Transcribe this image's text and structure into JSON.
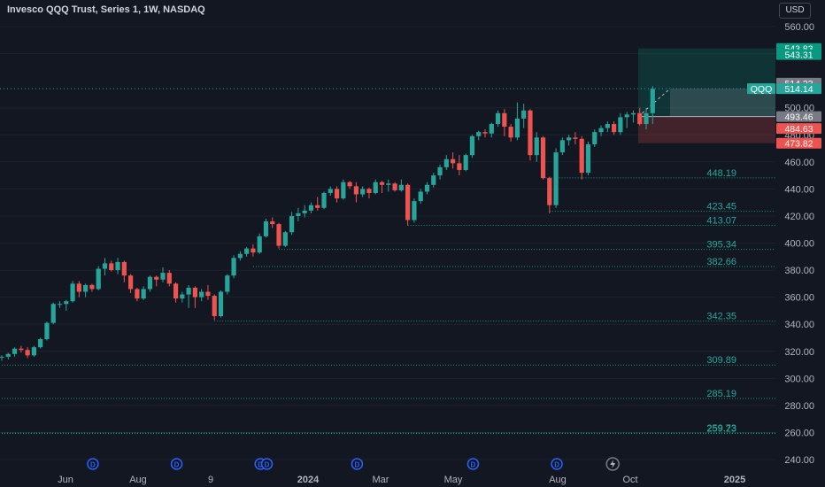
{
  "header": {
    "title": "Invesco QQQ Trust, Series 1, 1W, NASDAQ",
    "currency": "USD"
  },
  "colors": {
    "background": "#131722",
    "up": "#26a69a",
    "down": "#ef5350",
    "level_line": "#089981",
    "axis_text": "#b2b5be"
  },
  "chart_data": {
    "type": "candlestick",
    "y_axis": {
      "range": [
        232,
        566
      ],
      "ticks": [
        240,
        260,
        280,
        300,
        320,
        340,
        360,
        380,
        400,
        420,
        440,
        460,
        480,
        500,
        540,
        560
      ]
    },
    "x_axis": {
      "ticks": [
        {
          "label": "Jun",
          "bold": false
        },
        {
          "label": "Aug",
          "bold": false
        },
        {
          "label": "9",
          "bold": false
        },
        {
          "label": "2024",
          "bold": true
        },
        {
          "label": "Mar",
          "bold": false
        },
        {
          "label": "May",
          "bold": false
        },
        {
          "label": "Aug",
          "bold": false
        },
        {
          "label": "Oct",
          "bold": false
        },
        {
          "label": "2025",
          "bold": true
        }
      ]
    },
    "candles": [
      [
        316,
        317,
        313,
        316
      ],
      [
        316,
        319,
        314,
        318
      ],
      [
        318,
        323,
        316,
        322
      ],
      [
        322,
        324,
        319,
        321
      ],
      [
        321,
        323,
        315,
        317
      ],
      [
        317,
        324,
        316,
        323
      ],
      [
        323,
        330,
        322,
        329
      ],
      [
        329,
        342,
        328,
        341
      ],
      [
        341,
        356,
        340,
        355
      ],
      [
        355,
        357,
        352,
        355
      ],
      [
        355,
        358,
        350,
        357
      ],
      [
        357,
        372,
        356,
        370
      ],
      [
        370,
        372,
        360,
        364
      ],
      [
        364,
        370,
        360,
        369
      ],
      [
        369,
        370,
        364,
        366
      ],
      [
        366,
        383,
        365,
        381
      ],
      [
        381,
        389,
        376,
        385
      ],
      [
        385,
        387,
        379,
        380
      ],
      [
        380,
        389,
        377,
        386
      ],
      [
        386,
        387,
        371,
        376
      ],
      [
        376,
        377,
        363,
        366
      ],
      [
        366,
        367,
        357,
        359
      ],
      [
        359,
        368,
        358,
        366
      ],
      [
        366,
        376,
        364,
        375
      ],
      [
        375,
        376,
        368,
        373
      ],
      [
        373,
        382,
        371,
        378
      ],
      [
        378,
        380,
        368,
        370
      ],
      [
        370,
        371,
        356,
        359
      ],
      [
        359,
        364,
        356,
        362
      ],
      [
        362,
        369,
        352,
        367
      ],
      [
        367,
        368,
        352,
        360
      ],
      [
        360,
        366,
        357,
        364
      ],
      [
        364,
        369,
        358,
        361
      ],
      [
        361,
        362,
        343,
        346
      ],
      [
        346,
        365,
        345,
        364
      ],
      [
        364,
        377,
        362,
        376
      ],
      [
        376,
        391,
        374,
        389
      ],
      [
        389,
        394,
        387,
        392
      ],
      [
        392,
        397,
        390,
        396
      ],
      [
        396,
        399,
        390,
        393
      ],
      [
        393,
        407,
        392,
        405
      ],
      [
        405,
        418,
        404,
        416
      ],
      [
        416,
        419,
        411,
        414
      ],
      [
        414,
        415,
        396,
        398
      ],
      [
        398,
        409,
        397,
        408
      ],
      [
        408,
        423,
        406,
        420
      ],
      [
        420,
        426,
        416,
        422
      ],
      [
        422,
        428,
        419,
        424
      ],
      [
        424,
        430,
        422,
        428
      ],
      [
        428,
        434,
        424,
        426
      ],
      [
        426,
        438,
        425,
        437
      ],
      [
        437,
        442,
        435,
        440
      ],
      [
        440,
        442,
        430,
        433
      ],
      [
        433,
        447,
        432,
        445
      ],
      [
        445,
        446,
        440,
        442
      ],
      [
        442,
        445,
        430,
        436
      ],
      [
        436,
        442,
        434,
        440
      ],
      [
        440,
        441,
        433,
        437
      ],
      [
        437,
        447,
        436,
        445
      ],
      [
        445,
        446,
        437,
        443
      ],
      [
        443,
        447,
        438,
        444
      ],
      [
        444,
        445,
        438,
        439
      ],
      [
        439,
        447,
        438,
        443
      ],
      [
        443,
        444,
        413,
        417
      ],
      [
        417,
        433,
        415,
        431
      ],
      [
        431,
        440,
        429,
        438
      ],
      [
        438,
        445,
        436,
        443
      ],
      [
        443,
        452,
        441,
        450
      ],
      [
        450,
        458,
        447,
        456
      ],
      [
        456,
        465,
        454,
        462
      ],
      [
        462,
        467,
        455,
        459
      ],
      [
        459,
        465,
        450,
        454
      ],
      [
        454,
        466,
        453,
        465
      ],
      [
        465,
        480,
        463,
        479
      ],
      [
        479,
        483,
        476,
        482
      ],
      [
        482,
        484,
        478,
        481
      ],
      [
        481,
        489,
        478,
        488
      ],
      [
        488,
        498,
        486,
        496
      ],
      [
        496,
        499,
        479,
        486
      ],
      [
        486,
        488,
        475,
        478
      ],
      [
        478,
        504,
        476,
        492
      ],
      [
        492,
        503,
        485,
        498
      ],
      [
        498,
        499,
        461,
        465
      ],
      [
        465,
        482,
        460,
        478
      ],
      [
        478,
        479,
        447,
        448
      ],
      [
        448,
        449,
        422,
        428
      ],
      [
        428,
        470,
        426,
        467
      ],
      [
        467,
        478,
        465,
        476
      ],
      [
        476,
        480,
        472,
        478
      ],
      [
        478,
        482,
        473,
        477
      ],
      [
        477,
        479,
        447,
        452
      ],
      [
        452,
        475,
        450,
        473
      ],
      [
        473,
        484,
        471,
        482
      ],
      [
        482,
        487,
        479,
        485
      ],
      [
        485,
        490,
        482,
        488
      ],
      [
        488,
        490,
        480,
        482
      ],
      [
        482,
        496,
        480,
        493
      ],
      [
        493,
        497,
        485,
        495
      ],
      [
        495,
        498,
        489,
        496
      ],
      [
        496,
        500,
        487,
        488
      ],
      [
        488,
        500,
        484,
        496
      ],
      [
        496,
        516,
        488,
        514
      ]
    ],
    "levels": [
      {
        "price": 448.19,
        "label": "448.19",
        "start_index": 84
      },
      {
        "price": 423.45,
        "label": "423.45",
        "start_index": 85
      },
      {
        "price": 413.07,
        "label": "413.07",
        "start_index": 63
      },
      {
        "price": 395.34,
        "label": "395.34",
        "start_index": 43
      },
      {
        "price": 382.66,
        "label": "382.66",
        "start_index": 39
      },
      {
        "price": 342.35,
        "label": "342.35",
        "start_index": 33
      },
      {
        "price": 309.89,
        "label": "309.89",
        "start_index": 0
      },
      {
        "price": 285.19,
        "label": "285.19",
        "start_index": 0
      },
      {
        "price": 259.73,
        "label": "259.73",
        "start_index": 0
      },
      {
        "price": 259.23,
        "label": "259.23",
        "start_index": 0
      }
    ],
    "position": {
      "entry": 493.46,
      "target": 543.83,
      "stop": 473.82
    },
    "price_labels": [
      {
        "text": "543.83",
        "price": 543.83,
        "bg": "#089981",
        "fg": "#ffffff"
      },
      {
        "text": "543.31",
        "price": 539.3,
        "bg": "#089981",
        "fg": "#ffffff"
      },
      {
        "text": "514.23",
        "price": 518.2,
        "bg": "#787b86",
        "fg": "#ffffff"
      },
      {
        "text": "514.14",
        "price": 514.14,
        "bg": "#26a69a",
        "fg": "#ffffff"
      },
      {
        "text": "493.46",
        "price": 493.46,
        "bg": "#787b86",
        "fg": "#ffffff"
      },
      {
        "text": "484.63",
        "price": 484.63,
        "bg": "#ef5350",
        "fg": "#ffffff"
      },
      {
        "text": "473.82",
        "price": 473.82,
        "bg": "#ef5350",
        "fg": "#ffffff"
      }
    ],
    "symbol_label": {
      "text": "QQQ",
      "price": 514.14
    },
    "dividend_marker": "D",
    "dividend_indices": [
      14,
      27,
      40,
      41,
      55,
      73,
      86
    ],
    "earnings_index": 90
  }
}
